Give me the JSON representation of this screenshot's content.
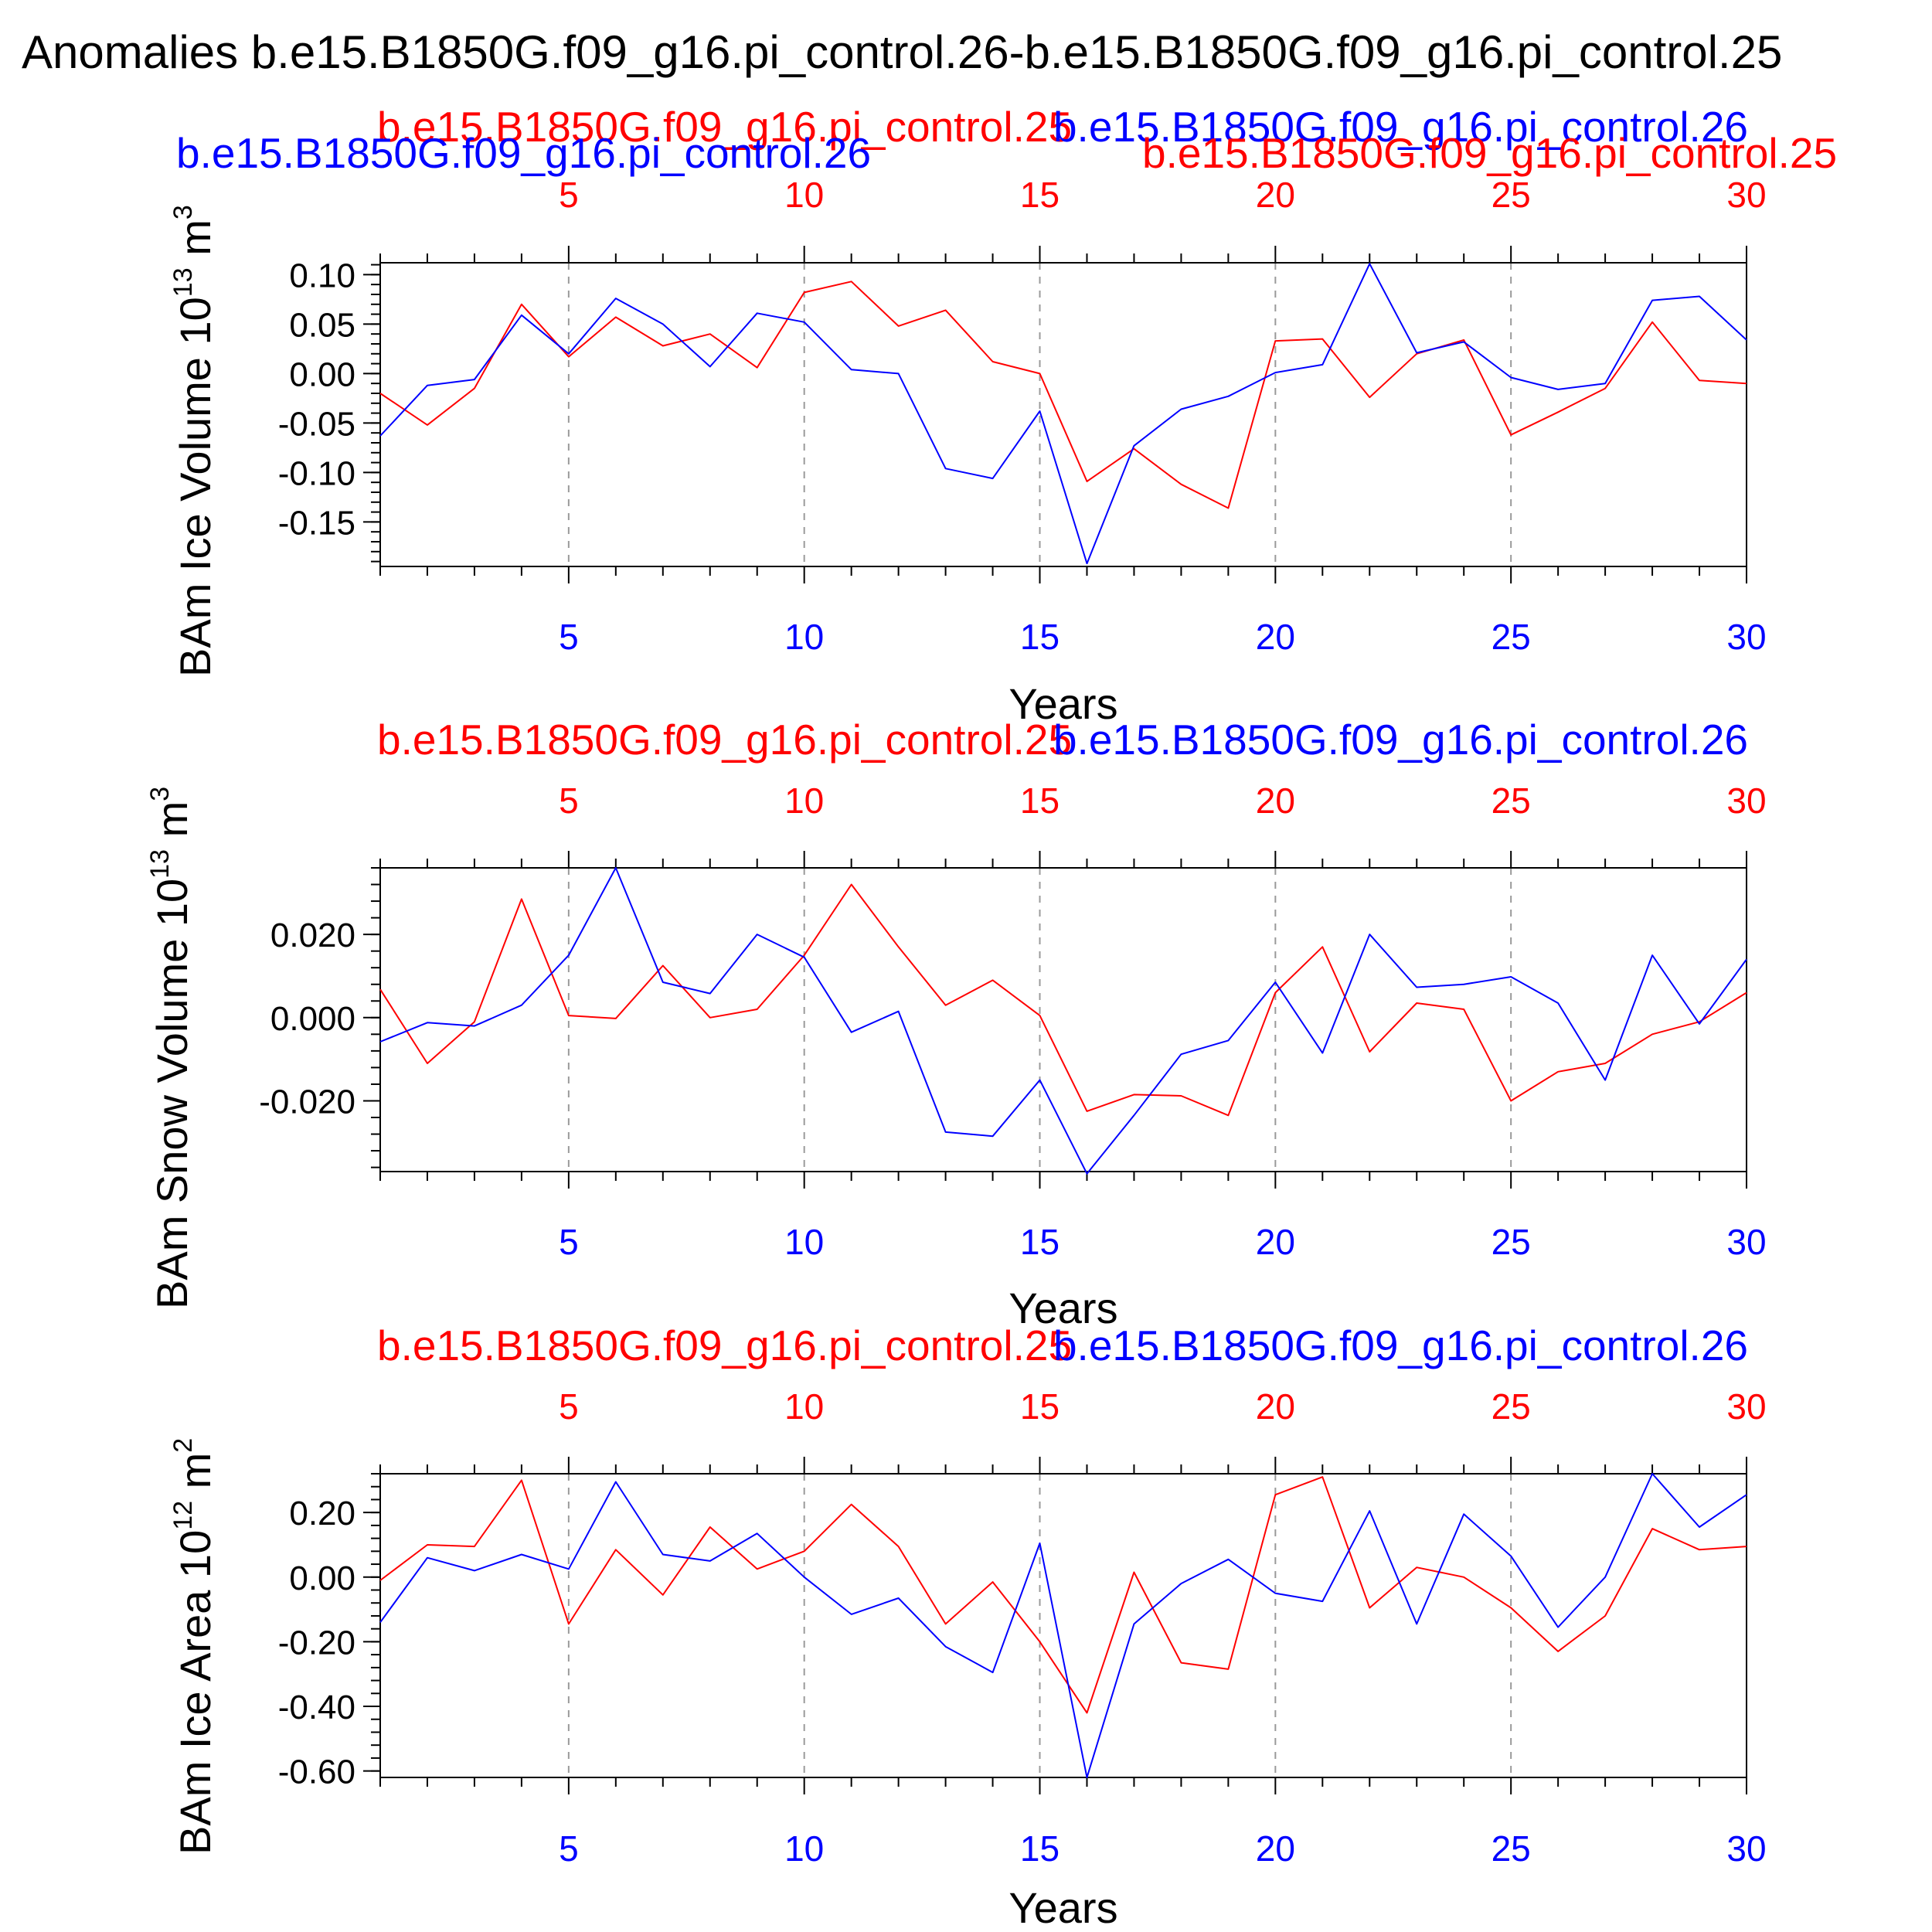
{
  "title": "Anomalies b.e15.B1850G.f09_g16.pi_control.26-b.e15.B1850G.f09_g16.pi_control.25",
  "colors": {
    "red": "#ff0000",
    "blue": "#0000ff",
    "axis": "#000000",
    "grid": "#9a9a9a"
  },
  "series_names": {
    "red": "b.e15.B1850G.f09_g16.pi_control.25",
    "blue": "b.e15.B1850G.f09_g16.pi_control.26"
  },
  "chart_data": [
    {
      "type": "line",
      "ylabel_main": "BAm Ice Volume 10",
      "ylabel_exp": "13",
      "ylabel_unit": " m",
      "ylabel_unit_exp": "3",
      "xlabel": "Years",
      "xlim": [
        1,
        30
      ],
      "ylim": [
        -0.195,
        0.112
      ],
      "xticks": [
        "5",
        "10",
        "15",
        "20",
        "25",
        "30"
      ],
      "yticks": [
        "0.10",
        "0.05",
        "0.00",
        "-0.05",
        "-0.10",
        "-0.15"
      ],
      "ytick_values": [
        0.1,
        0.05,
        0.0,
        -0.05,
        -0.1,
        -0.15
      ],
      "minor_step": 0.01,
      "x": [
        1,
        2,
        3,
        4,
        5,
        6,
        7,
        8,
        9,
        10,
        11,
        12,
        13,
        14,
        15,
        16,
        17,
        18,
        19,
        20,
        21,
        22,
        23,
        24,
        25,
        26,
        27,
        28,
        29,
        30
      ],
      "series": [
        {
          "name": "b.e15.B1850G.f09_g16.pi_control.25",
          "color": "red",
          "values": [
            -0.02,
            -0.052,
            -0.015,
            0.07,
            0.017,
            0.057,
            0.028,
            0.04,
            0.006,
            0.082,
            0.093,
            0.048,
            0.064,
            0.012,
            0.0,
            -0.109,
            -0.076,
            -0.112,
            -0.136,
            0.033,
            0.035,
            -0.024,
            0.02,
            0.034,
            -0.062,
            -0.039,
            -0.015,
            0.052,
            -0.007,
            -0.01
          ]
        },
        {
          "name": "b.e15.B1850G.f09_g16.pi_control.26",
          "color": "blue",
          "values": [
            -0.063,
            -0.012,
            -0.006,
            0.059,
            0.02,
            0.076,
            0.05,
            0.007,
            0.061,
            0.052,
            0.004,
            0.0,
            -0.096,
            -0.106,
            -0.038,
            -0.192,
            -0.073,
            -0.036,
            -0.023,
            0.001,
            0.009,
            0.111,
            0.021,
            0.032,
            -0.004,
            -0.016,
            -0.01,
            0.074,
            0.078,
            0.034
          ]
        }
      ]
    },
    {
      "type": "line",
      "ylabel_main": "BAm Snow Volume 10",
      "ylabel_exp": "13",
      "ylabel_unit": " m",
      "ylabel_unit_exp": "3",
      "xlabel": "Years",
      "xlim": [
        1,
        30
      ],
      "ylim": [
        -0.037,
        0.036
      ],
      "xticks": [
        "5",
        "10",
        "15",
        "20",
        "25",
        "30"
      ],
      "yticks": [
        "0.020",
        "0.000",
        "-0.020"
      ],
      "ytick_values": [
        0.02,
        0.0,
        -0.02
      ],
      "minor_step": 0.004,
      "x": [
        1,
        2,
        3,
        4,
        5,
        6,
        7,
        8,
        9,
        10,
        11,
        12,
        13,
        14,
        15,
        16,
        17,
        18,
        19,
        20,
        21,
        22,
        23,
        24,
        25,
        26,
        27,
        28,
        29,
        30
      ],
      "series": [
        {
          "name": "b.e15.B1850G.f09_g16.pi_control.25",
          "color": "red",
          "values": [
            0.0068,
            -0.011,
            -0.001,
            0.0285,
            0.0005,
            -0.0002,
            0.0125,
            0.0,
            0.002,
            0.015,
            0.032,
            0.017,
            0.003,
            0.009,
            0.0005,
            -0.0225,
            -0.0185,
            -0.0188,
            -0.0235,
            0.006,
            0.017,
            -0.0082,
            0.0035,
            0.002,
            -0.02,
            -0.013,
            -0.011,
            -0.004,
            -0.001,
            0.006
          ]
        },
        {
          "name": "b.e15.B1850G.f09_g16.pi_control.26",
          "color": "blue",
          "values": [
            -0.0058,
            -0.0012,
            -0.002,
            0.003,
            0.015,
            0.036,
            0.0085,
            0.0058,
            0.02,
            0.0145,
            -0.0035,
            0.0015,
            -0.0275,
            -0.0285,
            -0.015,
            -0.0375,
            -0.0235,
            -0.0088,
            -0.0055,
            0.0085,
            -0.0085,
            0.02,
            0.0073,
            0.008,
            0.0098,
            0.0035,
            -0.015,
            0.015,
            -0.0015,
            0.014
          ]
        }
      ]
    },
    {
      "type": "line",
      "ylabel_main": "BAm Ice Area 10",
      "ylabel_exp": "12",
      "ylabel_unit": " m",
      "ylabel_unit_exp": "2",
      "xlabel": "Years",
      "xlim": [
        1,
        30
      ],
      "ylim": [
        -0.62,
        0.32
      ],
      "xticks": [
        "5",
        "10",
        "15",
        "20",
        "25",
        "30"
      ],
      "yticks": [
        "0.20",
        "0.00",
        "-0.20",
        "-0.40",
        "-0.60"
      ],
      "ytick_values": [
        0.2,
        0.0,
        -0.2,
        -0.4,
        -0.6
      ],
      "minor_step": 0.04,
      "x": [
        1,
        2,
        3,
        4,
        5,
        6,
        7,
        8,
        9,
        10,
        11,
        12,
        13,
        14,
        15,
        16,
        17,
        18,
        19,
        20,
        21,
        22,
        23,
        24,
        25,
        26,
        27,
        28,
        29,
        30
      ],
      "series": [
        {
          "name": "b.e15.B1850G.f09_g16.pi_control.25",
          "color": "red",
          "values": [
            -0.01,
            0.1,
            0.095,
            0.3,
            -0.145,
            0.085,
            -0.055,
            0.155,
            0.025,
            0.08,
            0.225,
            0.095,
            -0.145,
            -0.015,
            -0.2,
            -0.42,
            0.015,
            -0.265,
            -0.285,
            0.255,
            0.31,
            -0.095,
            0.03,
            0.0,
            -0.095,
            -0.23,
            -0.12,
            0.15,
            0.085,
            0.095
          ]
        },
        {
          "name": "b.e15.B1850G.f09_g16.pi_control.26",
          "color": "blue",
          "values": [
            -0.14,
            0.06,
            0.02,
            0.07,
            0.025,
            0.295,
            0.07,
            0.05,
            0.135,
            0.0,
            -0.115,
            -0.065,
            -0.215,
            -0.295,
            0.105,
            -0.62,
            -0.145,
            -0.02,
            0.055,
            -0.05,
            -0.075,
            0.205,
            -0.145,
            0.195,
            0.065,
            -0.155,
            0.0,
            0.32,
            0.155,
            0.255
          ]
        }
      ]
    }
  ]
}
